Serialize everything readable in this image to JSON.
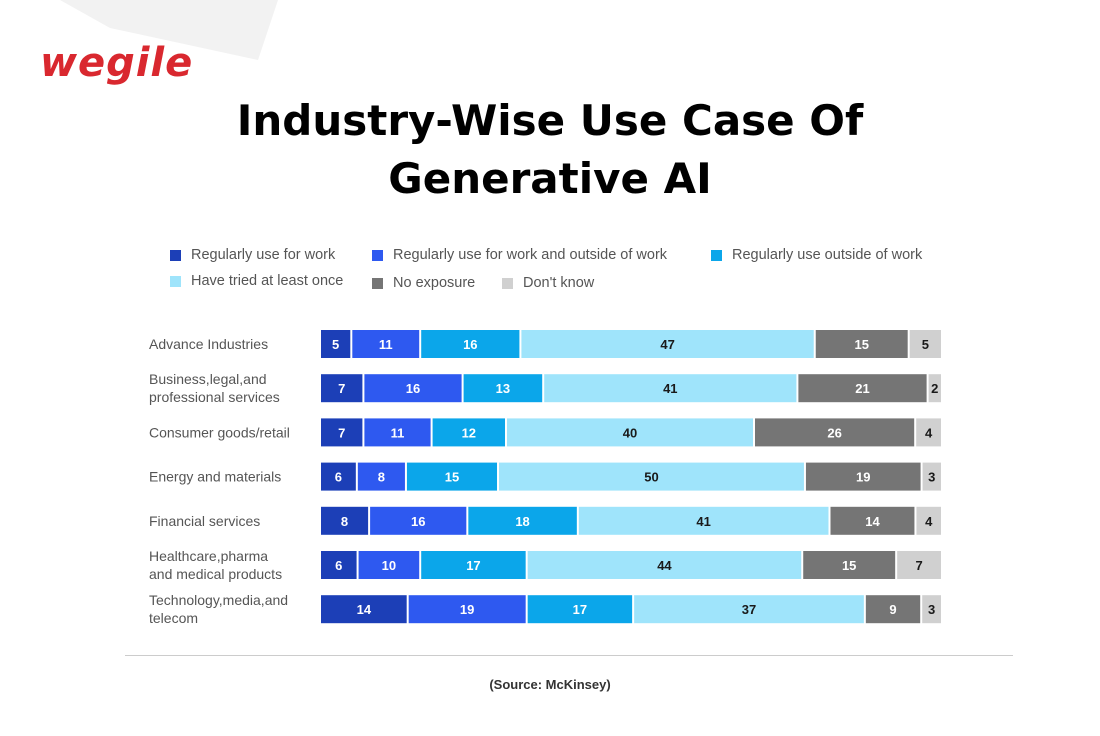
{
  "brand": {
    "logo_text": "wegile",
    "logo_color": "#d9282f"
  },
  "chart_data": {
    "type": "bar",
    "orientation": "horizontal",
    "stacked": true,
    "title": "Industry-Wise Use Case Of Generative AI",
    "title_lines": [
      "Industry-Wise Use Case Of",
      "Generative AI"
    ],
    "categories": [
      "Advance Industries",
      "Business,legal,and professional services",
      "Consumer goods/retail",
      "Energy and materials",
      "Financial services",
      "Healthcare,pharma and medical products",
      "Technology,media,and telecom"
    ],
    "category_lines": [
      [
        "Advance Industries"
      ],
      [
        "Business,legal,and",
        "professional services"
      ],
      [
        "Consumer goods/retail"
      ],
      [
        "Energy and materials"
      ],
      [
        "Financial services"
      ],
      [
        "Healthcare,pharma",
        "and medical products"
      ],
      [
        "Technology,media,and",
        "telecom"
      ]
    ],
    "series": [
      {
        "name": "Regularly use for work",
        "color": "#1c3fb7",
        "label_color": "#ffffff",
        "values": [
          5,
          7,
          7,
          6,
          8,
          6,
          14
        ]
      },
      {
        "name": "Regularly use for work and outside of work",
        "color": "#2e59f0",
        "label_color": "#ffffff",
        "values": [
          11,
          16,
          11,
          8,
          16,
          10,
          19
        ]
      },
      {
        "name": "Regularly use outside of work",
        "color": "#0ba6ea",
        "label_color": "#ffffff",
        "values": [
          16,
          13,
          12,
          15,
          18,
          17,
          17
        ]
      },
      {
        "name": "Have tried at least once",
        "color": "#9fe4fb",
        "label_color": "#1a1a1a",
        "values": [
          47,
          41,
          40,
          50,
          41,
          44,
          37
        ]
      },
      {
        "name": "No exposure",
        "color": "#757575",
        "label_color": "#ffffff",
        "values": [
          15,
          21,
          26,
          19,
          14,
          15,
          9
        ]
      },
      {
        "name": "Don't know",
        "color": "#d0d0d0",
        "label_color": "#1a1a1a",
        "values": [
          5,
          2,
          4,
          3,
          4,
          7,
          3
        ]
      }
    ],
    "legend_position": "top",
    "data_labels": true,
    "grid": false
  },
  "source": "(Source: McKinsey)"
}
